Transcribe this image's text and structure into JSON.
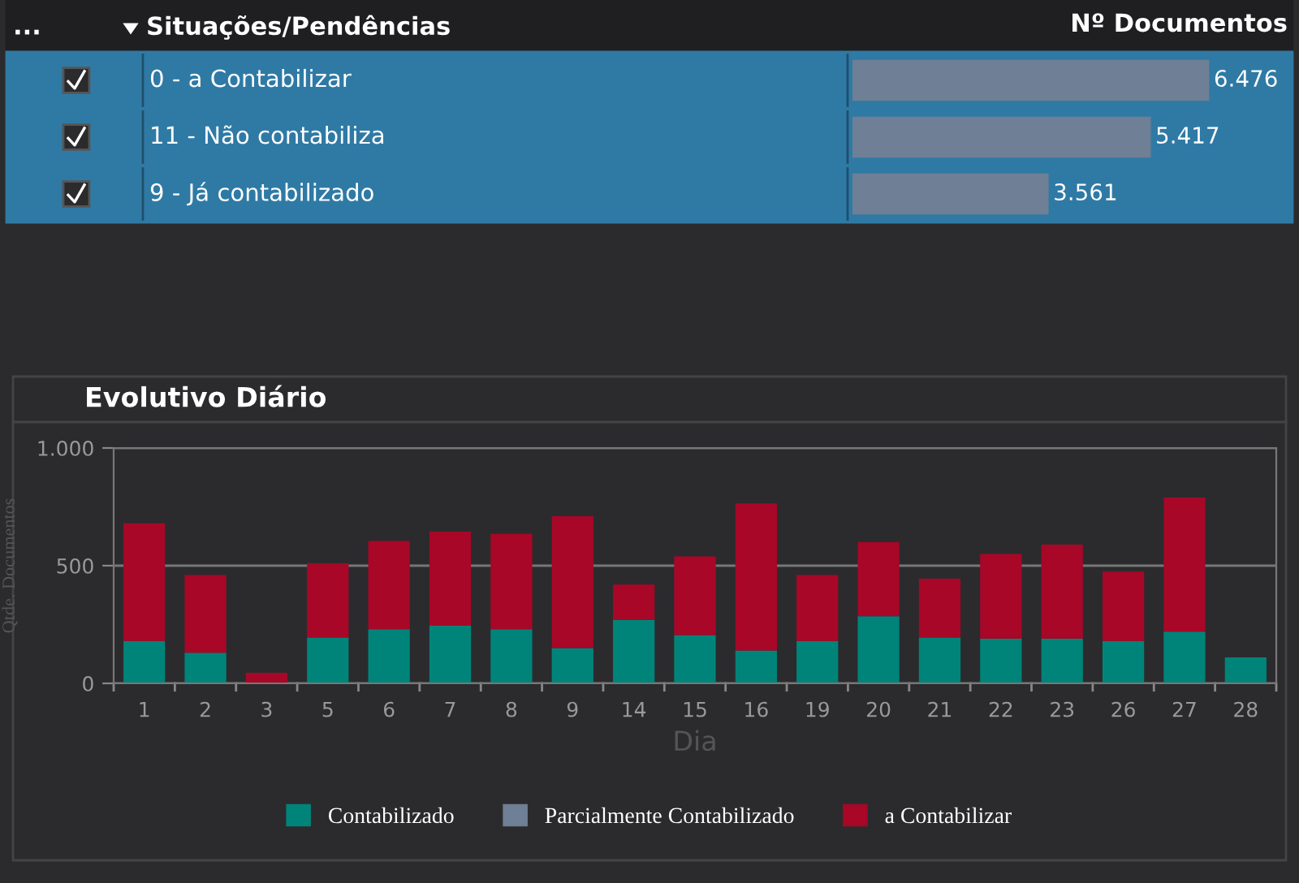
{
  "chart_data": [
    {
      "type": "bar",
      "orientation": "horizontal",
      "ylabel": "Situações/Pendências",
      "xlabel": "Nº Documentos",
      "annotations": [
        "..."
      ],
      "categories": [
        "0 - a Contabilizar",
        "11 - Não contabiliza",
        "9 - Já contabilizado"
      ],
      "values": [
        6476,
        5417,
        3561
      ],
      "value_labels": [
        "6.476",
        "5.417",
        "3.561"
      ],
      "color": "#6f7f95"
    },
    {
      "type": "bar",
      "stacked": true,
      "title": "Evolutivo Diário",
      "xlabel": "Dia",
      "ylabel": "Qtde. Documentos",
      "categories": [
        "1",
        "2",
        "3",
        "5",
        "6",
        "7",
        "8",
        "9",
        "14",
        "15",
        "16",
        "19",
        "20",
        "21",
        "22",
        "23",
        "26",
        "27",
        "28"
      ],
      "series": [
        {
          "name": "Contabilizado",
          "color": "#00847a",
          "values": [
            180,
            130,
            0,
            195,
            230,
            245,
            230,
            150,
            270,
            205,
            140,
            180,
            285,
            195,
            190,
            190,
            180,
            220,
            110
          ]
        },
        {
          "name": "Parcialmente Contabilizado",
          "color": "#6f7f95",
          "values": [
            null,
            null,
            null,
            null,
            null,
            null,
            null,
            null,
            null,
            null,
            null,
            null,
            null,
            null,
            null,
            null,
            null,
            null,
            null
          ]
        },
        {
          "name": "a Contabilizar",
          "color": "#a80727",
          "values": [
            500,
            330,
            45,
            315,
            375,
            400,
            405,
            560,
            150,
            335,
            625,
            280,
            315,
            250,
            360,
            400,
            295,
            570,
            0
          ]
        }
      ],
      "ylim": [
        0,
        1000
      ],
      "yticks": [
        0,
        500,
        {
          "value": 1000,
          "label": "1.000"
        }
      ],
      "grid": "y",
      "legend": "bottom"
    }
  ]
}
